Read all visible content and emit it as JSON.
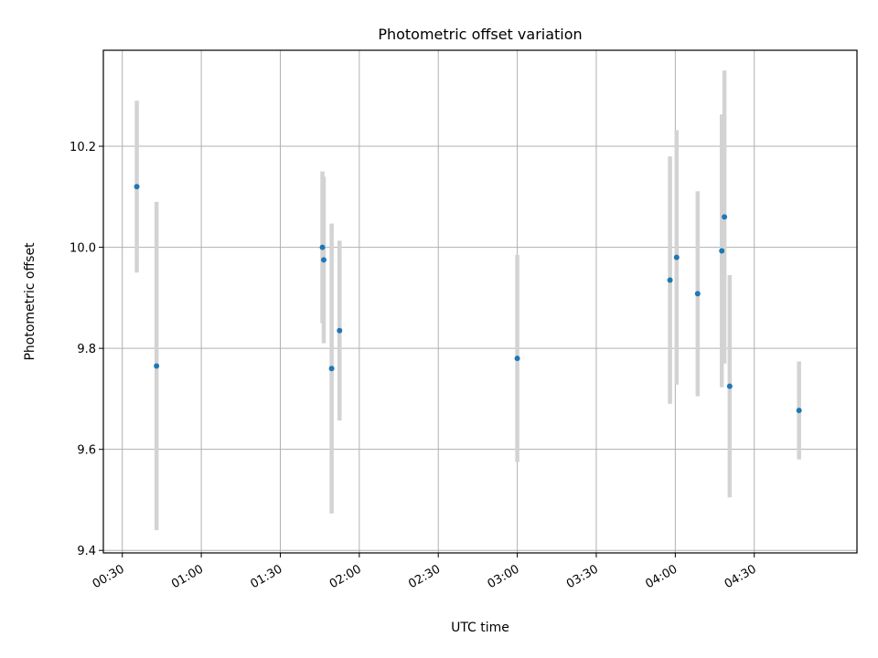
{
  "chart_data": {
    "type": "scatter",
    "title": "Photometric offset variation",
    "xlabel": "UTC time",
    "ylabel": "Photometric offset",
    "x_type": "time",
    "xlim": [
      "00:22:48",
      "05:09:00"
    ],
    "ylim": [
      9.395,
      10.39
    ],
    "x_ticks": [
      "00:30",
      "01:00",
      "01:30",
      "02:00",
      "02:30",
      "03:00",
      "03:30",
      "04:00",
      "04:30"
    ],
    "y_ticks": [
      9.4,
      9.6,
      9.8,
      10.0,
      10.2
    ],
    "y_tick_labels": [
      "9.4",
      "9.6",
      "9.8",
      "10.0",
      "10.2"
    ],
    "x_tick_rotation": 30,
    "grid": true,
    "legend": "none",
    "marker_color": "#1f77b4",
    "errorbar_color": "#d3d3d3",
    "series": [
      {
        "points": [
          {
            "x": "00:35:30",
            "y": 10.12,
            "yerr": 0.17
          },
          {
            "x": "00:43:00",
            "y": 9.765,
            "yerr": 0.325
          },
          {
            "x": "01:46:00",
            "y": 10.0,
            "yerr": 0.15
          },
          {
            "x": "01:46:30",
            "y": 9.975,
            "yerr": 0.165
          },
          {
            "x": "01:49:30",
            "y": 9.76,
            "yerr": 0.287
          },
          {
            "x": "01:52:30",
            "y": 9.835,
            "yerr": 0.178
          },
          {
            "x": "03:00:00",
            "y": 9.78,
            "yerr": 0.205
          },
          {
            "x": "03:58:00",
            "y": 9.935,
            "yerr": 0.245
          },
          {
            "x": "04:00:30",
            "y": 9.98,
            "yerr": 0.252
          },
          {
            "x": "04:08:30",
            "y": 9.908,
            "yerr": 0.203
          },
          {
            "x": "04:17:40",
            "y": 9.993,
            "yerr": 0.27
          },
          {
            "x": "04:18:40",
            "y": 10.06,
            "yerr": 0.29
          },
          {
            "x": "04:20:40",
            "y": 9.725,
            "yerr": 0.22
          },
          {
            "x": "04:47:00",
            "y": 9.677,
            "yerr": 0.097
          }
        ]
      }
    ]
  }
}
